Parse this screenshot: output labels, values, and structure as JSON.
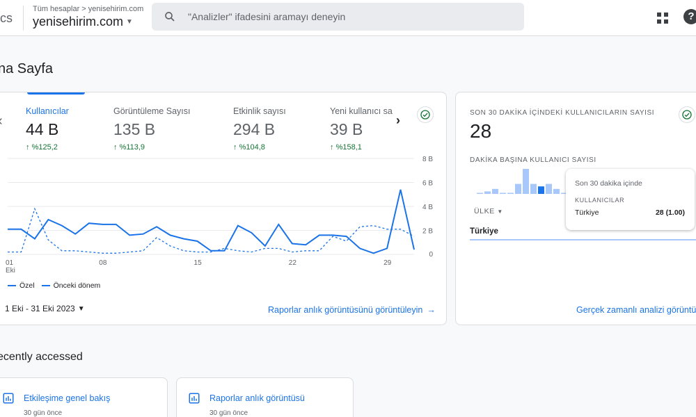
{
  "header": {
    "app_name": "cs",
    "breadcrumb": "Tüm hesaplar > yenisehirim.com",
    "account": "yenisehirim.com",
    "search_placeholder": "\"Analizler\" ifadesini aramayı deneyin"
  },
  "page_title": "na Sayfa",
  "metrics": [
    {
      "label": "Kullanıcılar",
      "value": "44 B",
      "delta": "%125,2"
    },
    {
      "label": "Görüntüleme Sayısı",
      "value": "135 B",
      "delta": "%113,9"
    },
    {
      "label": "Etkinlik sayısı",
      "value": "294 B",
      "delta": "%104,8"
    },
    {
      "label": "Yeni kullanıcı sayısı",
      "value": "39 B",
      "delta": "%158,1"
    }
  ],
  "chart_data": {
    "type": "line",
    "x_ticks": [
      "01\nEki",
      "08",
      "15",
      "22",
      "29"
    ],
    "y_ticks": [
      "8 B",
      "6 B",
      "4 B",
      "2 B",
      "0"
    ],
    "ylim": [
      0,
      8000
    ],
    "x": [
      1,
      2,
      3,
      4,
      5,
      6,
      7,
      8,
      9,
      10,
      11,
      12,
      13,
      14,
      15,
      16,
      17,
      18,
      19,
      20,
      21,
      22,
      23,
      24,
      25,
      26,
      27,
      28,
      29,
      30,
      31
    ],
    "series": [
      {
        "name": "Özel",
        "style": "solid",
        "values": [
          2100,
          2100,
          1300,
          2900,
          2400,
          1700,
          2600,
          2500,
          2500,
          1600,
          1700,
          2300,
          1600,
          1300,
          1100,
          300,
          300,
          2400,
          1800,
          700,
          2500,
          900,
          800,
          1600,
          1600,
          1500,
          500,
          100,
          500,
          5400,
          400
        ]
      },
      {
        "name": "Önceki dönem",
        "style": "dashed",
        "values": [
          200,
          200,
          3800,
          1200,
          300,
          300,
          200,
          100,
          100,
          200,
          300,
          1400,
          700,
          300,
          200,
          200,
          500,
          300,
          200,
          500,
          500,
          200,
          300,
          300,
          1500,
          1100,
          2300,
          2400,
          2100,
          2100,
          1500
        ]
      }
    ],
    "legend": [
      "Özel",
      "Önceki dönem"
    ],
    "legend_position": "bottom-left"
  },
  "date_range": "1 Eki - 31 Eki 2023",
  "main_link": "Raporlar anlık görüntüsünü görüntüleyin",
  "realtime": {
    "title": "SON 30 DAKİKA İÇİNDEKİ KULLANICILARIN SAYISI",
    "value": "28",
    "subtitle": "DAKİKA BAŞINA KULLANICI SAYISI",
    "bars_per_minute": [
      0,
      1,
      2,
      0,
      0,
      4,
      10,
      4,
      3,
      4,
      2,
      0,
      7,
      2
    ],
    "country_label": "ÜLKE",
    "row_country": "Türkiye",
    "tooltip": {
      "heading": "Son 30 dakika içinde",
      "metric": "KULLANICILAR",
      "country": "Türkiye",
      "value": "28 (1.00)"
    },
    "link": "Gerçek zamanlı analizi görüntüle"
  },
  "recently_accessed": {
    "title": "ecently accessed",
    "items": [
      {
        "title": "Etkileşime genel bakış",
        "time": "30 gün önce"
      },
      {
        "title": "Raporlar anlık görüntüsü",
        "time": "30 gün önce"
      }
    ]
  },
  "colors": {
    "accent": "#1a73e8",
    "positive": "#137333",
    "bar_light": "#a8c7fa",
    "bar_dark": "#1a73e8"
  }
}
